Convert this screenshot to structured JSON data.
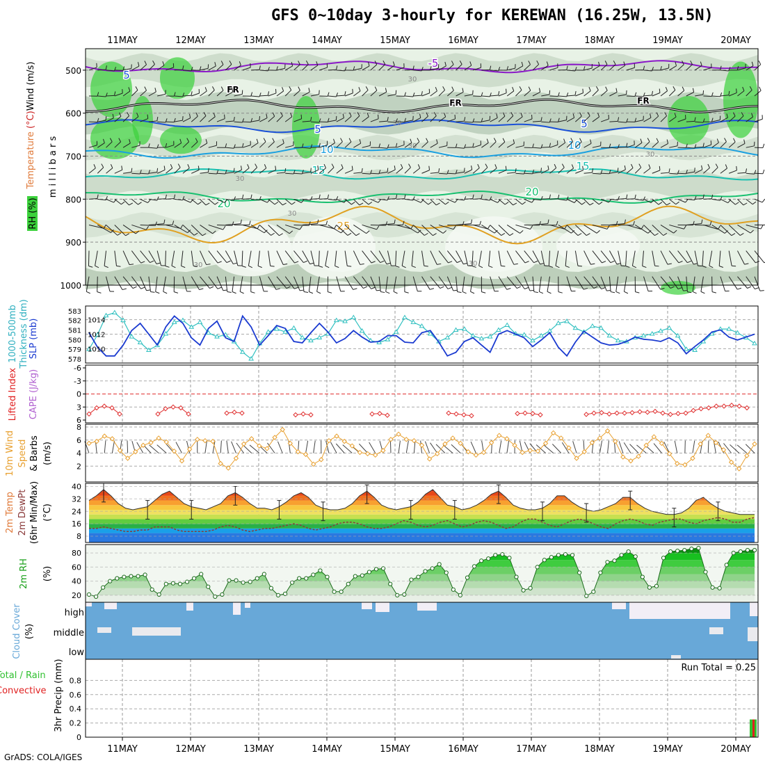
{
  "title": "GFS 0~10day 3-hourly for KEREWAN (16.25W, 13.5N)",
  "credit": "GrADS: COLA/IGES",
  "days": [
    "11MAY",
    "12MAY",
    "13MAY",
    "14MAY",
    "15MAY",
    "16MAY",
    "17MAY",
    "18MAY",
    "19MAY",
    "20MAY"
  ],
  "colors": {
    "rh_green": "#3cd23c",
    "temp_purple": "#8a18c8",
    "temp_blue": "#1a50d8",
    "temp_cyan": "#1aa0e0",
    "temp_teal": "#18c0b0",
    "temp_green": "#18c070",
    "temp_orange": "#e0a020",
    "thickness": "#30c0c0",
    "slp": "#1a3ad0",
    "lifted": "#e03030",
    "wind": "#e8a030",
    "cloud": "#68a8d8",
    "rain": "#30c030",
    "conv": "#e02020"
  },
  "chart_data": [
    {
      "type": "heatmap",
      "name": "upper-air",
      "ylabel_parts": [
        "RH (%)",
        "Temperature",
        "(°C)",
        "Wind (m/s)"
      ],
      "yunit": "millibars",
      "yticks": [
        500,
        600,
        700,
        800,
        900,
        1000
      ],
      "ylim": [
        1000,
        450
      ],
      "isotherm_labels": [
        "-5",
        "5",
        "FR",
        "FR",
        "FR",
        "5",
        "5",
        "10",
        "10",
        "15",
        "15",
        "20",
        "20",
        "25"
      ],
      "rh_labels": [
        "30",
        "30",
        "30",
        "30",
        "30",
        "30",
        "30",
        "30"
      ],
      "isotherms": [
        {
          "label": "-5",
          "level": 492
        },
        {
          "label": "FR",
          "level": 583
        },
        {
          "label": "5",
          "level": 630
        },
        {
          "label": "10",
          "level": 690
        },
        {
          "label": "15",
          "level": 742
        },
        {
          "label": "20",
          "level": 795
        },
        {
          "label": "25",
          "level": 860
        }
      ]
    },
    {
      "type": "line",
      "name": "thickness-slp",
      "ylabel_left": "1000-500mb Thickness (dm)",
      "ylabel_right": "SLP (mb)",
      "left_ticks": [
        "583",
        "582",
        "581",
        "580",
        "579",
        "578"
      ],
      "right_ticks": [
        "1014",
        "1012",
        "1010"
      ],
      "series": [
        {
          "name": "Thickness",
          "values": [
            579,
            580.5,
            582.5,
            582.8,
            582,
            580.3,
            579.7,
            578.9,
            579.4,
            580.6,
            581.8,
            582,
            581.3,
            581.8,
            580.7,
            580.3,
            580.5,
            579.8,
            578.7,
            578,
            579.6,
            580.8,
            581.1,
            580.8,
            581.2,
            580.2,
            579.9,
            580.2,
            580.6,
            582,
            581.9,
            582.3,
            580.9,
            579.9,
            579.7,
            580,
            580.8,
            582.3,
            581.8,
            581.4,
            580.6,
            579.8,
            580.2,
            581,
            581.1,
            580.4,
            580.1,
            580.3,
            581,
            581.5,
            580.6,
            580.5,
            579.9,
            580.4,
            580.9,
            581.7,
            581.9,
            581.2,
            580.8,
            581.4,
            581.2,
            580.4,
            579.9,
            579.8,
            580.2,
            580.4,
            580.6,
            580.9,
            581.2,
            580.4,
            579,
            578.9,
            579.8,
            580.6,
            581.1,
            581.1,
            580.7,
            580.2,
            579.6
          ]
        },
        {
          "name": "SLP",
          "values": [
            1012.2,
            1010.2,
            1009,
            1009,
            1010.5,
            1012.5,
            1013.5,
            1012,
            1010.5,
            1013,
            1014.5,
            1013.5,
            1011.5,
            1010.5,
            1012.8,
            1013.8,
            1011.5,
            1011,
            1014.5,
            1013,
            1010.5,
            1011.8,
            1013.2,
            1012.8,
            1011,
            1010.8,
            1012.2,
            1013.5,
            1012.3,
            1010.8,
            1011.4,
            1012.5,
            1011.6,
            1010.9,
            1011,
            1011.8,
            1011.8,
            1010.9,
            1010.8,
            1012.2,
            1012.5,
            1010.9,
            1009,
            1009.5,
            1011,
            1011.5,
            1010.5,
            1009.5,
            1012,
            1012.5,
            1012,
            1011.5,
            1010.3,
            1011.2,
            1012.2,
            1010.2,
            1009,
            1010.9,
            1012.4,
            1011.6,
            1010.8,
            1010.5,
            1010.6,
            1011,
            1011.6,
            1011.3,
            1011.2,
            1011,
            1011.5,
            1010.8,
            1009.3,
            1010.3,
            1011.2,
            1012.3,
            1012.6,
            1011.6,
            1011.2,
            1011.6,
            1012
          ]
        }
      ]
    },
    {
      "type": "line",
      "name": "lifted-index-cape",
      "ylabel_left": "Lifted Index",
      "ylabel_right": "CAPE (J/kg)",
      "yticks": [
        "-6",
        "-3",
        "0",
        "3",
        "6"
      ],
      "ylim": [
        -6,
        6
      ],
      "series": [
        {
          "name": "Lifted Index",
          "values": [
            4.6,
            3.2,
            2.8,
            3.2,
            4.6,
            null,
            null,
            null,
            null,
            4.6,
            3.4,
            3.0,
            3.2,
            4.6,
            null,
            null,
            null,
            null,
            4.4,
            4.2,
            4.4,
            null,
            null,
            null,
            null,
            null,
            null,
            4.8,
            4.6,
            4.8,
            null,
            null,
            null,
            null,
            null,
            null,
            null,
            4.6,
            4.5,
            4.9,
            null,
            null,
            null,
            null,
            null,
            null,
            null,
            4.4,
            4.6,
            4.8,
            5.0,
            null,
            null,
            null,
            null,
            null,
            4.5,
            4.4,
            4.5,
            4.8,
            null,
            null,
            null,
            null,
            null,
            4.7,
            4.4,
            4.3,
            4.6,
            4.4,
            4.4,
            4.3,
            4.1,
            4.2,
            4.0,
            4.4,
            4.7,
            4.5,
            4.4,
            3.8,
            3.4,
            3.2,
            2.8,
            2.8,
            2.6,
            2.8,
            3.2,
            null
          ]
        }
      ]
    },
    {
      "type": "line",
      "name": "10m-wind",
      "ylabel_parts": [
        "10m Wind",
        "Speed",
        "& Barbs",
        "(m/s)"
      ],
      "yticks": [
        "8",
        "6",
        "4",
        "2"
      ],
      "ylim": [
        0,
        8
      ],
      "series": [
        {
          "name": "10m Wind Speed",
          "values": [
            5.5,
            5.8,
            6.6,
            6.2,
            4.4,
            3.2,
            4.2,
            5.2,
            5.6,
            6.3,
            5.7,
            4.3,
            2.8,
            4.6,
            6.1,
            5.9,
            5.8,
            2.4,
            1.7,
            3.2,
            5.4,
            6.2,
            5.1,
            4.7,
            6.4,
            7.6,
            5.5,
            4.2,
            3.8,
            2.3,
            3.0,
            5.9,
            6.6,
            5.8,
            5.1,
            4.1,
            3.9,
            3.7,
            4.4,
            6.1,
            6.9,
            6.1,
            5.9,
            5.2,
            3.1,
            3.9,
            5.4,
            6.3,
            5.5,
            4.2,
            3.7,
            4.1,
            5.6,
            6.7,
            6.2,
            5.2,
            4.1,
            4.4,
            4.3,
            5.5,
            7.1,
            6.3,
            4.8,
            3.2,
            4.2,
            5.6,
            6.3,
            7.4,
            5.8,
            3.4,
            2.8,
            3.5,
            5.2,
            6.5,
            5.5,
            3.9,
            2.4,
            2.2,
            3.2,
            5.4,
            6.7,
            5.6,
            4.5,
            2.6,
            1.6,
            3.6,
            5.4
          ]
        }
      ]
    },
    {
      "type": "area",
      "name": "2m-temp-dewpt",
      "ylabel_parts": [
        "2m Temp",
        "2m DewPt",
        "(6hr Min/Max)",
        "(°C)"
      ],
      "yticks": [
        "40",
        "32",
        "24",
        "16",
        "8"
      ],
      "ylim": [
        4,
        42
      ],
      "series": [
        {
          "name": "2m Temp",
          "values": [
            31,
            34,
            38,
            34,
            29,
            26,
            25,
            26,
            27,
            31,
            35,
            37,
            33,
            29,
            27,
            26,
            25,
            27,
            29,
            34,
            36,
            33,
            29,
            26,
            26,
            25,
            27,
            30,
            34,
            36,
            33,
            28,
            26,
            25,
            25,
            26,
            29,
            34,
            37,
            33,
            28,
            26,
            25,
            26,
            27,
            30,
            35,
            38,
            33,
            28,
            27,
            25,
            26,
            28,
            31,
            35,
            37,
            33,
            28,
            26,
            25,
            25,
            26,
            29,
            34,
            34,
            30,
            27,
            25,
            24,
            25,
            27,
            29,
            33,
            33,
            29,
            26,
            24,
            23,
            22,
            22,
            23,
            26,
            31,
            33,
            29,
            26,
            24,
            23,
            22,
            22,
            22
          ]
        },
        {
          "name": "2m DewPt",
          "values": [
            13,
            13,
            14,
            13,
            12,
            11,
            11,
            12,
            12,
            14,
            14,
            14,
            12,
            11,
            11,
            11,
            11,
            12,
            14,
            15,
            14,
            12,
            11,
            12,
            13,
            13,
            14,
            15,
            16,
            15,
            13,
            12,
            13,
            14,
            16,
            17,
            17,
            16,
            14,
            13,
            13,
            14,
            16,
            18,
            17,
            15,
            14,
            15,
            17,
            18,
            16,
            14,
            15,
            17,
            18,
            17,
            15,
            13,
            14,
            17,
            19,
            19,
            17,
            15,
            14,
            16,
            18,
            19,
            18,
            16,
            14,
            13,
            16,
            18,
            19,
            18,
            16,
            15,
            17,
            18,
            19,
            19,
            17,
            16,
            18,
            19,
            20,
            19,
            17,
            17,
            19,
            20
          ]
        }
      ]
    },
    {
      "type": "area",
      "name": "2m-rh",
      "ylabel_parts": [
        "2m RH",
        "(%)"
      ],
      "yticks": [
        "80",
        "60",
        "40",
        "20"
      ],
      "ylim": [
        12,
        90
      ],
      "series": [
        {
          "name": "2m RH",
          "values": [
            21,
            18,
            31,
            40,
            44,
            46,
            47,
            47,
            49,
            28,
            21,
            36,
            37,
            36,
            39,
            44,
            50,
            32,
            18,
            21,
            41,
            41,
            38,
            39,
            44,
            50,
            30,
            20,
            22,
            38,
            44,
            44,
            49,
            55,
            46,
            25,
            25,
            36,
            47,
            48,
            53,
            57,
            58,
            36,
            20,
            21,
            42,
            46,
            54,
            58,
            64,
            52,
            28,
            20,
            45,
            61,
            69,
            72,
            77,
            78,
            73,
            46,
            27,
            30,
            60,
            70,
            74,
            77,
            78,
            77,
            52,
            19,
            25,
            52,
            67,
            69,
            77,
            82,
            75,
            46,
            31,
            33,
            73,
            82,
            83,
            84,
            86,
            87,
            53,
            31,
            30,
            63,
            80,
            82,
            84,
            84
          ]
        }
      ]
    },
    {
      "type": "bar",
      "name": "cloud-cover",
      "ylabel_parts": [
        "Cloud Cover",
        "(%)"
      ],
      "levels": [
        "high",
        "middle",
        "low"
      ]
    },
    {
      "type": "bar",
      "name": "3hr-precip",
      "ylabel_parts": [
        "Total / Rain",
        "Convective",
        "3hr Precip (mm)"
      ],
      "yticks": [
        "0.8",
        "0.6",
        "0.4",
        "0.2",
        "0"
      ],
      "ylim": [
        0,
        1
      ],
      "run_total": "Run Total = 0.25",
      "series": [
        {
          "name": "Total / Rain",
          "values": [
            {
              "x": "20MAY",
              "y": 0.25
            }
          ]
        },
        {
          "name": "Convective",
          "values": [
            {
              "x": "20MAY",
              "y": 0.25
            }
          ]
        }
      ]
    }
  ]
}
